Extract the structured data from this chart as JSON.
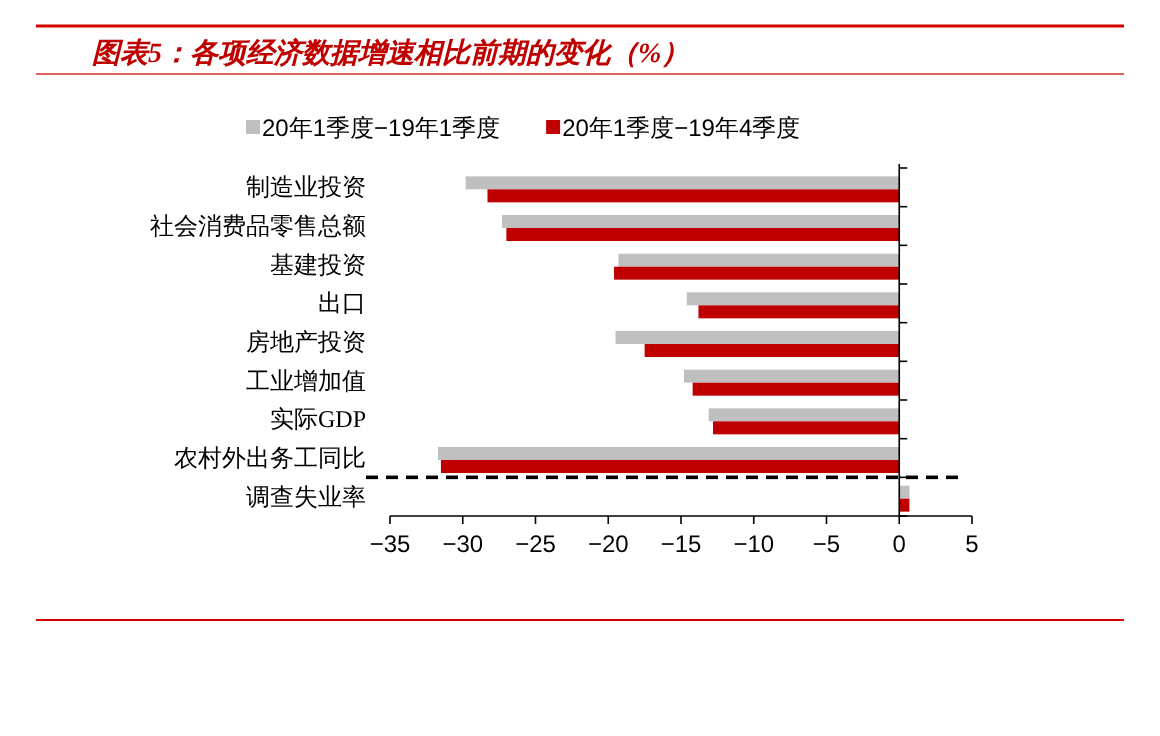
{
  "chart_data": {
    "type": "bar",
    "orientation": "horizontal",
    "title": "图表5：各项经济数据增速相比前期的变化（%）",
    "categories": [
      "制造业投资",
      "社会消费品零售总额",
      "基建投资",
      "出口",
      "房地产投资",
      "工业增加值",
      "实际GDP",
      "农村外出务工同比",
      "调查失业率"
    ],
    "series": [
      {
        "name": "20年1季度−19年1季度",
        "color": "#bfbfbf",
        "values": [
          -29.8,
          -27.3,
          -19.3,
          -14.6,
          -19.5,
          -14.8,
          -13.1,
          -31.7,
          0.7
        ]
      },
      {
        "name": "20年1季度−19年4季度",
        "color": "#c00000",
        "values": [
          -28.3,
          -27.0,
          -19.6,
          -13.8,
          -17.5,
          -14.2,
          -12.8,
          -31.5,
          0.7
        ]
      }
    ],
    "xlim": [
      -35,
      5
    ],
    "xticks": [
      -35,
      -30,
      -25,
      -20,
      -15,
      -10,
      -5,
      0,
      5
    ],
    "legend": "top"
  }
}
